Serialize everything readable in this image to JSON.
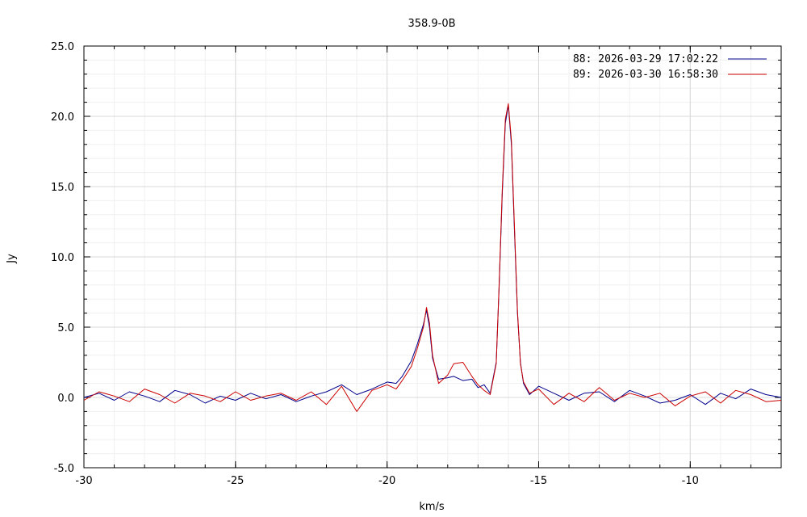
{
  "chart_data": {
    "type": "line",
    "title": "358.9-0B",
    "xlabel": "km/s",
    "ylabel": "Jy",
    "xlim": [
      -30,
      -7
    ],
    "ylim": [
      -5,
      25
    ],
    "x_ticks": [
      -30,
      -25,
      -20,
      -15,
      -10
    ],
    "y_ticks": [
      -5.0,
      0.0,
      5.0,
      10.0,
      15.0,
      20.0,
      25.0
    ],
    "x_tick_labels": [
      "-30",
      "-25",
      "-20",
      "-15",
      "-10"
    ],
    "y_tick_labels": [
      "-5.0",
      "0.0",
      "5.0",
      "10.0",
      "15.0",
      "20.0",
      "25.0"
    ],
    "grid": true,
    "legend_position": "top-right",
    "series": [
      {
        "name": "88:   2026-03-29 17:02:22",
        "color": "#00008b",
        "x": [
          -30,
          -29.5,
          -29,
          -28.5,
          -28,
          -27.5,
          -27,
          -26.5,
          -26,
          -25.5,
          -25,
          -24.5,
          -24,
          -23.5,
          -23,
          -22.5,
          -22,
          -21.5,
          -21,
          -20.5,
          -20,
          -19.7,
          -19.5,
          -19.2,
          -19.0,
          -18.8,
          -18.7,
          -18.6,
          -18.5,
          -18.3,
          -18.0,
          -17.8,
          -17.5,
          -17.2,
          -17.0,
          -16.8,
          -16.6,
          -16.4,
          -16.3,
          -16.2,
          -16.1,
          -16.0,
          -15.9,
          -15.8,
          -15.7,
          -15.6,
          -15.5,
          -15.3,
          -15.0,
          -14.5,
          -14,
          -13.5,
          -13,
          -12.5,
          -12,
          -11.5,
          -11,
          -10.5,
          -10,
          -9.5,
          -9,
          -8.5,
          -8,
          -7.5,
          -7
        ],
        "values": [
          0.0,
          0.3,
          -0.2,
          0.4,
          0.1,
          -0.3,
          0.5,
          0.2,
          -0.4,
          0.1,
          -0.2,
          0.3,
          -0.1,
          0.2,
          -0.3,
          0.1,
          0.4,
          0.9,
          0.2,
          0.6,
          1.1,
          1.0,
          1.5,
          2.6,
          3.8,
          5.2,
          6.2,
          5.0,
          2.8,
          1.3,
          1.4,
          1.5,
          1.2,
          1.3,
          0.7,
          0.9,
          0.3,
          2.5,
          8.0,
          14.5,
          19.5,
          20.8,
          18.0,
          12.0,
          6.0,
          2.5,
          1.0,
          0.2,
          0.8,
          0.3,
          -0.2,
          0.3,
          0.4,
          -0.3,
          0.5,
          0.1,
          -0.4,
          -0.2,
          0.2,
          -0.5,
          0.3,
          -0.1,
          0.6,
          0.2,
          0.0
        ]
      },
      {
        "name": "89:   2026-03-30 16:58:30",
        "color": "#cc0000",
        "x": [
          -30,
          -29.5,
          -29,
          -28.5,
          -28,
          -27.5,
          -27,
          -26.5,
          -26,
          -25.5,
          -25,
          -24.5,
          -24,
          -23.5,
          -23,
          -22.5,
          -22,
          -21.5,
          -21,
          -20.5,
          -20,
          -19.7,
          -19.5,
          -19.2,
          -19.0,
          -18.8,
          -18.7,
          -18.6,
          -18.5,
          -18.3,
          -18.0,
          -17.8,
          -17.5,
          -17.2,
          -17.0,
          -16.8,
          -16.6,
          -16.4,
          -16.3,
          -16.2,
          -16.1,
          -16.0,
          -15.9,
          -15.8,
          -15.7,
          -15.6,
          -15.5,
          -15.3,
          -15.0,
          -14.5,
          -14,
          -13.5,
          -13,
          -12.5,
          -12,
          -11.5,
          -11,
          -10.5,
          -10,
          -9.5,
          -9,
          -8.5,
          -8,
          -7.5,
          -7
        ],
        "values": [
          -0.2,
          0.4,
          0.1,
          -0.3,
          0.6,
          0.2,
          -0.4,
          0.3,
          0.1,
          -0.3,
          0.4,
          -0.2,
          0.1,
          0.3,
          -0.2,
          0.4,
          -0.5,
          0.8,
          -1.0,
          0.5,
          0.9,
          0.6,
          1.2,
          2.2,
          3.5,
          5.0,
          6.4,
          5.3,
          3.0,
          1.0,
          1.6,
          2.4,
          2.5,
          1.5,
          0.9,
          0.5,
          0.2,
          2.4,
          8.2,
          14.8,
          19.8,
          20.9,
          18.3,
          12.3,
          6.2,
          2.4,
          1.1,
          0.3,
          0.6,
          -0.5,
          0.3,
          -0.3,
          0.7,
          -0.2,
          0.3,
          0.0,
          0.3,
          -0.6,
          0.1,
          0.4,
          -0.4,
          0.5,
          0.2,
          -0.3,
          -0.2
        ]
      }
    ]
  }
}
